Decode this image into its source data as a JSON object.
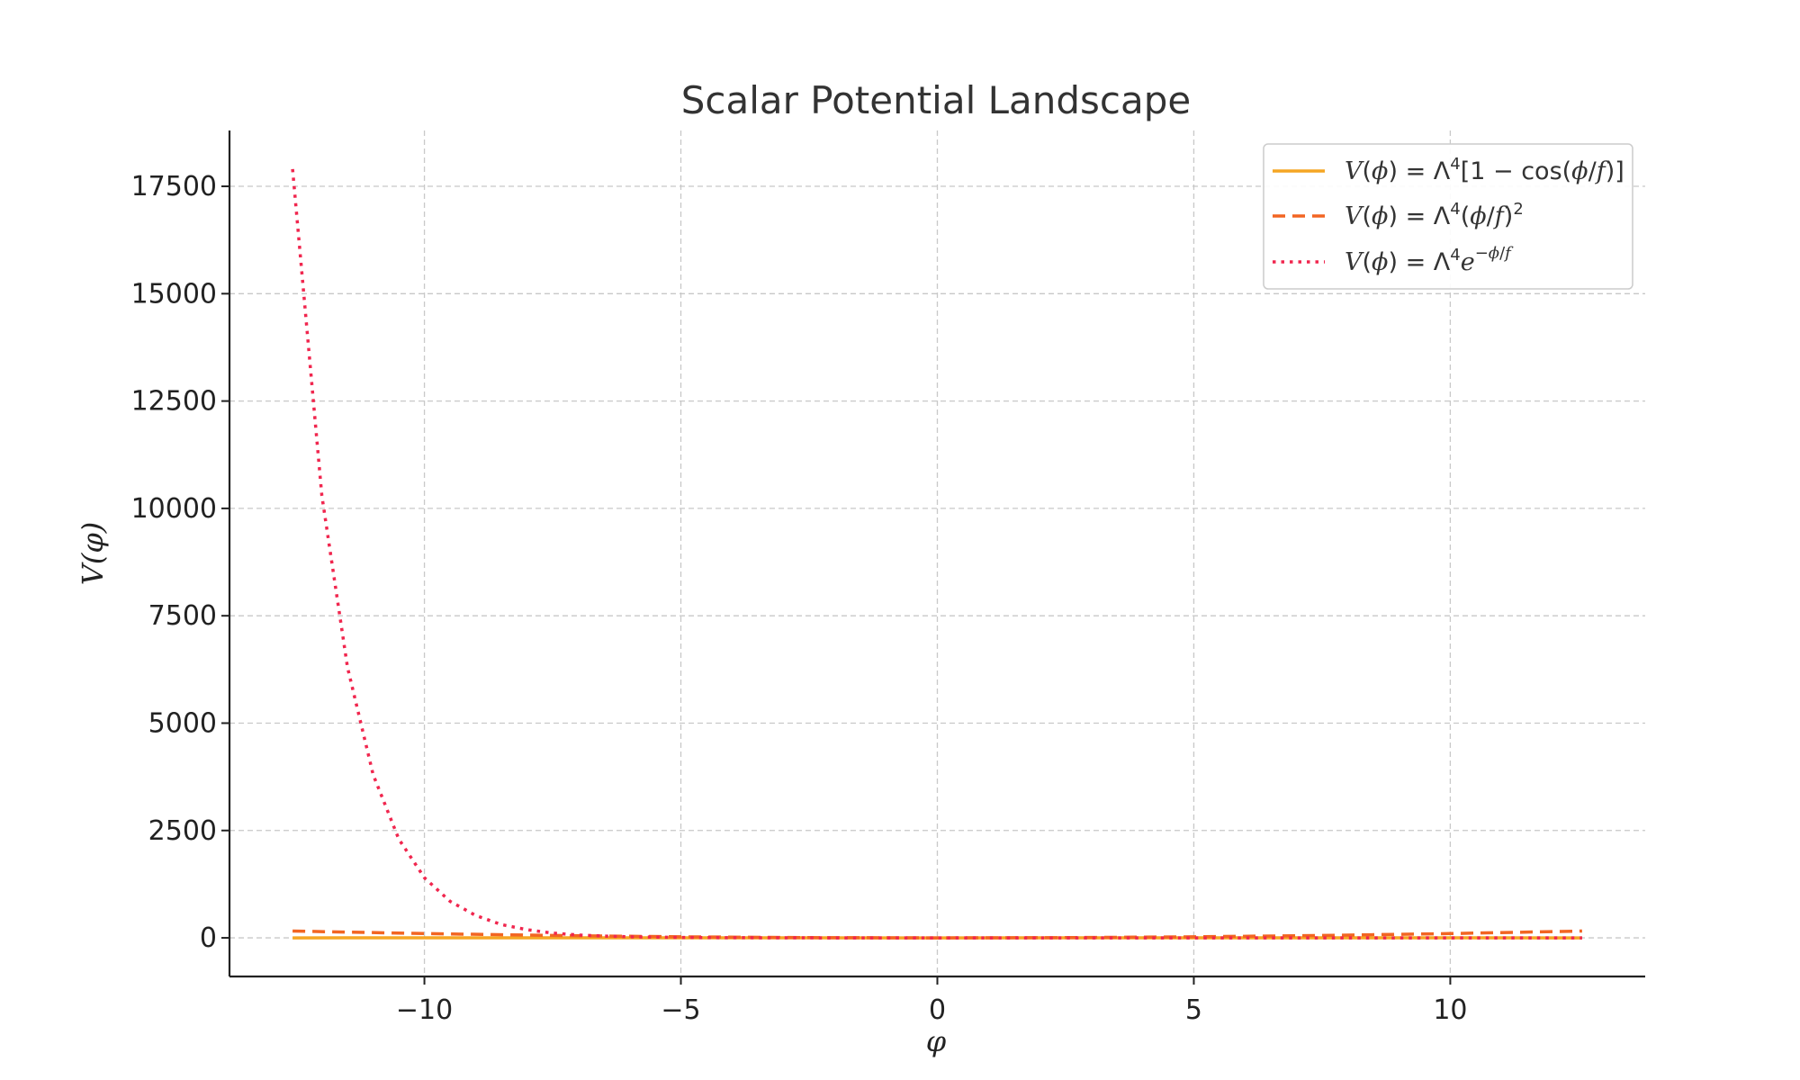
{
  "chart_data": {
    "type": "line",
    "title": "Scalar Potential Landscape",
    "xlabel": "φ",
    "ylabel": "V(φ)",
    "xlim": [
      -13.8,
      13.8
    ],
    "ylim": [
      -900,
      18800
    ],
    "xticks": [
      -10,
      -5,
      0,
      5,
      10
    ],
    "xtick_labels": [
      "−10",
      "−5",
      "0",
      "5",
      "10"
    ],
    "yticks": [
      0,
      2500,
      5000,
      7500,
      10000,
      12500,
      15000,
      17500
    ],
    "ytick_labels": [
      "0",
      "2500",
      "5000",
      "7500",
      "10000",
      "12500",
      "15000",
      "17500"
    ],
    "grid": true,
    "legend_position": "top-right",
    "series": [
      {
        "name": "V(φ) = Λ⁴[1 − cos(φ/f)]",
        "color": "#f5a623",
        "style": "solid",
        "x": [
          -12.57,
          -10,
          -7.5,
          -5,
          -2.5,
          0,
          2.5,
          5,
          7.5,
          10,
          12.57
        ],
        "y": [
          0,
          2,
          1,
          1,
          2,
          0,
          2,
          1,
          1,
          2,
          0
        ]
      },
      {
        "name": "V(φ) = Λ⁴(φ/f)²",
        "color": "#f26522",
        "style": "dashed",
        "x": [
          -12.57,
          -10,
          -7.5,
          -5,
          -2.5,
          0,
          2.5,
          5,
          7.5,
          10,
          12.57
        ],
        "y": [
          158,
          100,
          56,
          25,
          6,
          0,
          6,
          25,
          56,
          100,
          158
        ]
      },
      {
        "name": "V(φ) = Λ⁴e^(−φ/f)",
        "color": "#f0264e",
        "style": "dotted",
        "x": [
          -12.57,
          -12,
          -11.5,
          -11,
          -10.5,
          -10,
          -9.5,
          -9,
          -8.5,
          -8,
          -7.5,
          -7,
          -6.5,
          -6,
          -5,
          -4,
          -2,
          0,
          2,
          5,
          8,
          10,
          12.57
        ],
        "y": [
          17900,
          10300,
          6300,
          3800,
          2300,
          1400,
          850,
          520,
          310,
          190,
          110,
          66,
          40,
          24,
          9,
          3,
          0,
          0,
          0,
          0,
          0,
          0,
          0
        ]
      }
    ]
  }
}
